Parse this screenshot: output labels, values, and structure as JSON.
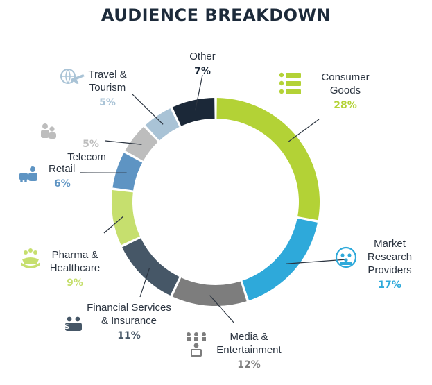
{
  "title": "AUDIENCE BREAKDOWN",
  "chart_data": {
    "type": "pie",
    "title": "AUDIENCE BREAKDOWN",
    "donut": true,
    "slices": [
      {
        "label": [
          "Consumer",
          "Goods"
        ],
        "value": 28,
        "value_label": "28%",
        "color": "#b3d236",
        "icon": "consumer-goods-icon"
      },
      {
        "label": [
          "Market",
          "Research",
          "Providers"
        ],
        "value": 17,
        "value_label": "17%",
        "color": "#2ea9da",
        "icon": "market-research-icon"
      },
      {
        "label": [
          "Media &",
          "Entertainment"
        ],
        "value": 12,
        "value_label": "12%",
        "color": "#7d7d7d",
        "icon": "media-entertainment-icon"
      },
      {
        "label": [
          "Financial Services",
          "& Insurance"
        ],
        "value": 11,
        "value_label": "11%",
        "color": "#465767",
        "icon": "financial-services-icon"
      },
      {
        "label": [
          "Pharma &",
          "Healthcare"
        ],
        "value": 9,
        "value_label": "9%",
        "color": "#c6df6e",
        "icon": "pharma-healthcare-icon"
      },
      {
        "label": [
          "Retail"
        ],
        "value": 6,
        "value_label": "6%",
        "color": "#5e94c3",
        "icon": "retail-icon"
      },
      {
        "label": [
          "Telecom"
        ],
        "value": 5,
        "value_label": "5%",
        "color": "#bdbdbd",
        "icon": "telecom-icon"
      },
      {
        "label": [
          "Travel &",
          "Tourism"
        ],
        "value": 5,
        "value_label": "5%",
        "color": "#a9c3d6",
        "icon": "travel-tourism-icon"
      },
      {
        "label": [
          "Other"
        ],
        "value": 7,
        "value_label": "7%",
        "color": "#1b2838",
        "icon": ""
      }
    ]
  }
}
